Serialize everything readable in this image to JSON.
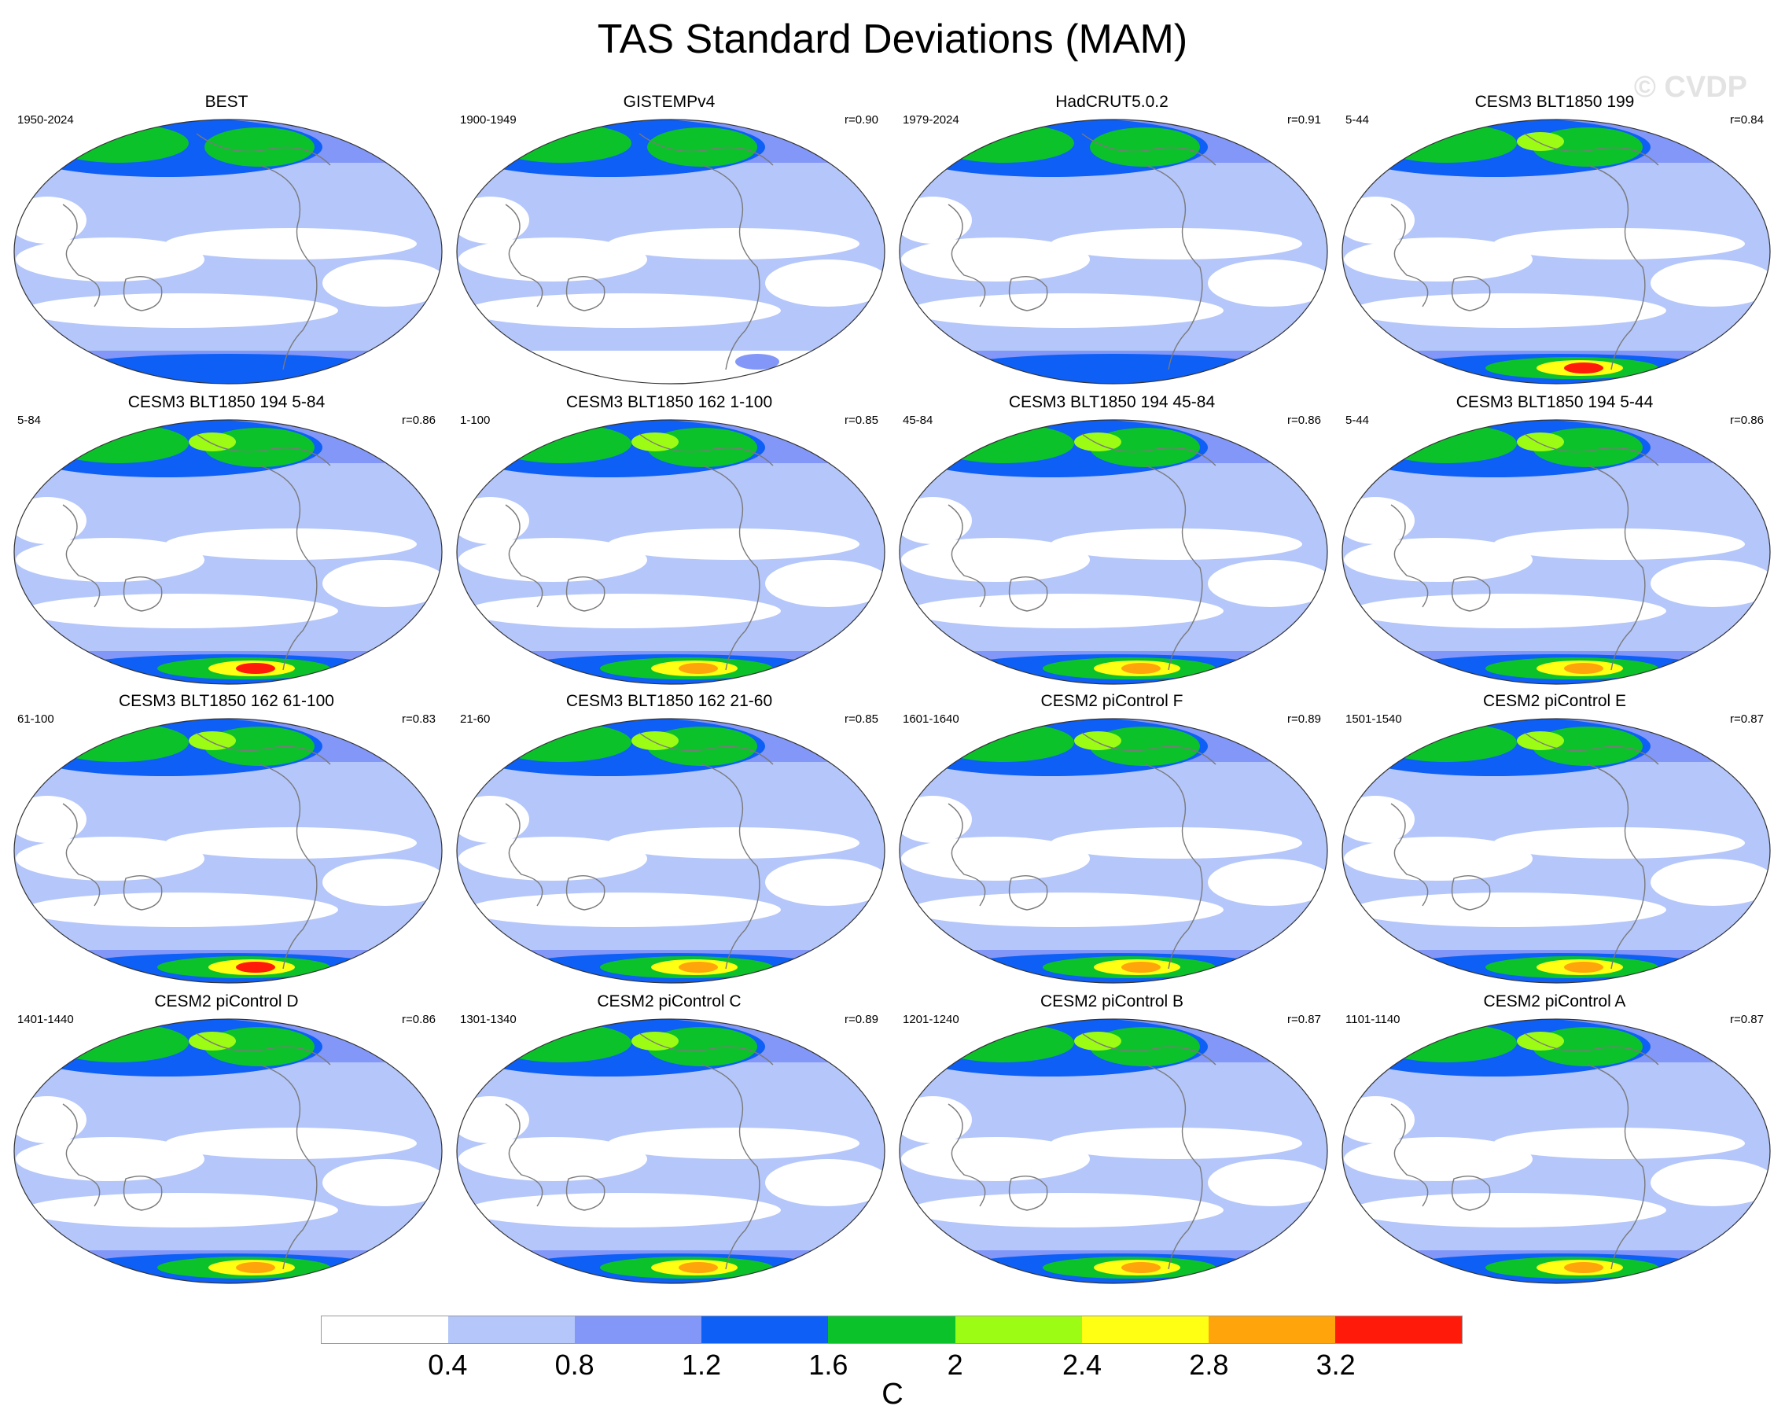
{
  "title": "TAS Standard Deviations (MAM)",
  "watermark": "© CVDP",
  "colorbar": {
    "unit": "C",
    "ticks": [
      "0.4",
      "0.8",
      "1.2",
      "1.6",
      "2",
      "2.4",
      "2.8",
      "3.2"
    ],
    "colors": [
      "#ffffff",
      "#b4c6fa",
      "#8297f7",
      "#0d5ff5",
      "#0cc22a",
      "#9cfc13",
      "#ffff14",
      "#ffa50b",
      "#ff1a0a"
    ]
  },
  "panels": [
    {
      "title": "BEST",
      "period": "1950-2024",
      "r": ""
    },
    {
      "title": "GISTEMPv4",
      "period": "1900-1949",
      "r": "r=0.90"
    },
    {
      "title": "HadCRUT5.0.2",
      "period": "1979-2024",
      "r": "r=0.91"
    },
    {
      "title": "CESM3 BLT1850 199",
      "period": "5-44",
      "r": "r=0.84"
    },
    {
      "title": "CESM3 BLT1850 194 5-84",
      "period": "5-84",
      "r": "r=0.86"
    },
    {
      "title": "CESM3 BLT1850 162 1-100",
      "period": "1-100",
      "r": "r=0.85"
    },
    {
      "title": "CESM3 BLT1850 194 45-84",
      "period": "45-84",
      "r": "r=0.86"
    },
    {
      "title": "CESM3 BLT1850 194 5-44",
      "period": "5-44",
      "r": "r=0.86"
    },
    {
      "title": "CESM3 BLT1850 162 61-100",
      "period": "61-100",
      "r": "r=0.83"
    },
    {
      "title": "CESM3 BLT1850 162 21-60",
      "period": "21-60",
      "r": "r=0.85"
    },
    {
      "title": "CESM2 piControl F",
      "period": "1601-1640",
      "r": "r=0.89"
    },
    {
      "title": "CESM2 piControl E",
      "period": "1501-1540",
      "r": "r=0.87"
    },
    {
      "title": "CESM2 piControl D",
      "period": "1401-1440",
      "r": "r=0.86"
    },
    {
      "title": "CESM2 piControl C",
      "period": "1301-1340",
      "r": "r=0.89"
    },
    {
      "title": "CESM2 piControl B",
      "period": "1201-1240",
      "r": "r=0.87"
    },
    {
      "title": "CESM2 piControl A",
      "period": "1101-1140",
      "r": "r=0.87"
    }
  ]
}
